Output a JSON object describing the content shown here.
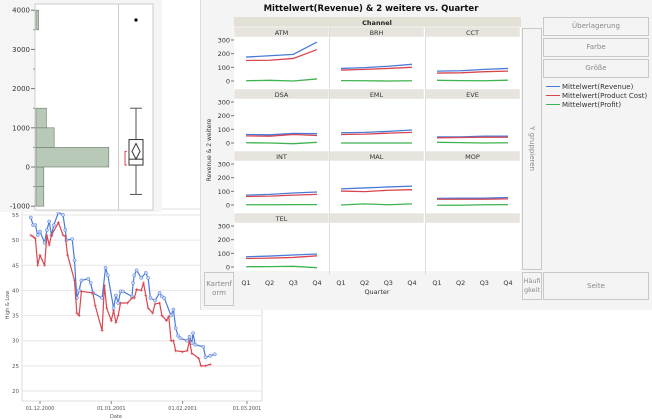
{
  "timeseries": {
    "chart_data": {
      "type": "line",
      "title": "",
      "xlabel": "Date",
      "ylabel": "High & Low",
      "ylim": [
        19,
        56
      ],
      "yticks": [
        20,
        25,
        30,
        35,
        40,
        45,
        50,
        55
      ],
      "xticks": [
        {
          "day": 0,
          "label": "01.12.2000"
        },
        {
          "day": 31,
          "label": "01.01.2001"
        },
        {
          "day": 62,
          "label": "01.02.2001"
        },
        {
          "day": 90,
          "label": "01.03.2001"
        }
      ],
      "x_unit": "days since 01.12.2000",
      "series": [
        {
          "name": "High",
          "color": "#4a7bd8",
          "points": [
            [
              -4,
              54.5
            ],
            [
              -3,
              53
            ],
            [
              -2,
              53
            ],
            [
              -1,
              51
            ],
            [
              0,
              51.7
            ],
            [
              2,
              49.5
            ],
            [
              3,
              52
            ],
            [
              4,
              53.7
            ],
            [
              5,
              51
            ],
            [
              6,
              53
            ],
            [
              8,
              55.5
            ],
            [
              10,
              55
            ],
            [
              11,
              52
            ],
            [
              11.5,
              50
            ],
            [
              14,
              50.2
            ],
            [
              15,
              46
            ],
            [
              16,
              38.5
            ],
            [
              17,
              40
            ],
            [
              18,
              42
            ],
            [
              21,
              42.3
            ],
            [
              22,
              41.5
            ],
            [
              23,
              39.5
            ],
            [
              27,
              38.5
            ],
            [
              28.5,
              44.5
            ],
            [
              29.5,
              43
            ],
            [
              32,
              36.5
            ],
            [
              33,
              39
            ],
            [
              34,
              37.5
            ],
            [
              35,
              39.8
            ],
            [
              36,
              39.8
            ],
            [
              40,
              38.8
            ],
            [
              40.5,
              41.5
            ],
            [
              41,
              43
            ],
            [
              42,
              44
            ],
            [
              44,
              42.5
            ],
            [
              46,
              43.5
            ],
            [
              47,
              42.5
            ],
            [
              48,
              38.5
            ],
            [
              50,
              38
            ],
            [
              52,
              39.5
            ],
            [
              53,
              38.8
            ],
            [
              54,
              38.5
            ],
            [
              57,
              35
            ],
            [
              58,
              36.2
            ],
            [
              59,
              32.5
            ],
            [
              60,
              31
            ],
            [
              61,
              30.5
            ],
            [
              64,
              30
            ],
            [
              65,
              30.8
            ],
            [
              66,
              29.5
            ],
            [
              66.5,
              31.5
            ],
            [
              67.5,
              29.2
            ],
            [
              71,
              28.8
            ],
            [
              72,
              26.7
            ],
            [
              74,
              27
            ],
            [
              76,
              27.3
            ]
          ]
        },
        {
          "name": "Low",
          "color": "#d8464f",
          "points": [
            [
              -4,
              51
            ],
            [
              -3,
              50.7
            ],
            [
              -2,
              50.3
            ],
            [
              -1,
              45
            ],
            [
              0,
              47
            ],
            [
              2,
              45
            ],
            [
              3,
              51
            ],
            [
              4,
              49
            ],
            [
              5,
              51
            ],
            [
              8,
              53.5
            ],
            [
              10,
              51
            ],
            [
              11,
              50.8
            ],
            [
              12,
              47
            ],
            [
              15,
              42
            ],
            [
              16,
              35.5
            ],
            [
              17,
              35
            ],
            [
              18,
              39.8
            ],
            [
              23,
              39.5
            ],
            [
              24,
              37
            ],
            [
              27,
              32
            ],
            [
              28,
              41
            ],
            [
              29,
              36.5
            ],
            [
              31,
              34
            ],
            [
              32,
              36
            ],
            [
              33,
              33.6
            ],
            [
              34,
              35
            ],
            [
              35,
              37.5
            ],
            [
              38,
              37.5
            ],
            [
              40,
              38.5
            ],
            [
              41,
              38.5
            ],
            [
              42,
              40.2
            ],
            [
              44,
              40
            ],
            [
              45,
              41.5
            ],
            [
              46,
              39
            ],
            [
              47,
              36.5
            ],
            [
              49,
              35.5
            ],
            [
              50,
              37.3
            ],
            [
              52,
              37.5
            ],
            [
              53,
              35
            ],
            [
              55,
              34
            ],
            [
              56,
              34.8
            ],
            [
              57,
              30
            ],
            [
              58,
              30
            ],
            [
              59,
              28
            ],
            [
              62,
              27.8
            ],
            [
              64,
              28
            ],
            [
              65,
              30
            ],
            [
              66,
              27.5
            ],
            [
              69,
              26.5
            ],
            [
              70,
              25
            ],
            [
              72,
              25
            ],
            [
              74,
              25.3
            ]
          ]
        }
      ]
    }
  },
  "histogram": {
    "chart_data": {
      "type": "bar",
      "orientation": "horizontal",
      "ylim": [
        -1000,
        4000
      ],
      "yticks": [
        "4000",
        "3000",
        "2000",
        "1000",
        "0",
        "-1000"
      ],
      "ytick_values": [
        4000,
        3000,
        2000,
        1000,
        0,
        -1000
      ],
      "bins": [
        {
          "from": -1000,
          "to": -500,
          "count": 3
        },
        {
          "from": -500,
          "to": 0,
          "count": 3
        },
        {
          "from": 0,
          "to": 500,
          "count": 28
        },
        {
          "from": 500,
          "to": 1000,
          "count": 7
        },
        {
          "from": 1000,
          "to": 1500,
          "count": 4
        },
        {
          "from": 3500,
          "to": 4000,
          "count": 1
        }
      ],
      "bar_color": "#b9c9b7",
      "boxplot": {
        "min": -700,
        "q1": 50,
        "median": 200,
        "q3": 700,
        "max": 1500,
        "outliers": [
          3750
        ],
        "mean": 400,
        "mean_ci": [
          200,
          600
        ],
        "shortest_half": [
          50,
          400
        ]
      }
    }
  },
  "graph_builder": {
    "title": "Mittelwert(Revenue) & 2 weitere vs. Quarter",
    "group_header": "Channel",
    "ylabel": "Revenue & 2 weitere",
    "xlabel": "Quarter",
    "buttons": {
      "overlay": "Überlagerung",
      "color": "Farbe",
      "size": "Größe",
      "group_y": "Y gruppieren",
      "map_shape": "Kartenform",
      "freq": "Häufigkeit",
      "page": "Seite"
    },
    "legend": [
      {
        "label": "Mittelwert(Revenue)",
        "color": "#4a7bd8"
      },
      {
        "label": "Mittelwert(Product Cost)",
        "color": "#d8464f"
      },
      {
        "label": "Mittelwert(Profit)",
        "color": "#3fb34f"
      }
    ],
    "chart_data": {
      "type": "line",
      "categories": [
        "Q1",
        "Q2",
        "Q3",
        "Q4"
      ],
      "ylim": [
        -10,
        300
      ],
      "yticks": [
        "0",
        "100",
        "200",
        "300"
      ],
      "panels": [
        {
          "channel": "ATM",
          "series": [
            [
              175,
              185,
              195,
              285
            ],
            [
              150,
              152,
              165,
              230
            ],
            [
              2,
              5,
              0,
              15
            ]
          ]
        },
        {
          "channel": "BRH",
          "series": [
            [
              92,
              98,
              108,
              122
            ],
            [
              80,
              85,
              92,
              100
            ],
            [
              3,
              2,
              0,
              2
            ]
          ]
        },
        {
          "channel": "CCT",
          "series": [
            [
              72,
              75,
              85,
              92
            ],
            [
              58,
              60,
              68,
              72
            ],
            [
              5,
              3,
              2,
              6
            ]
          ]
        },
        {
          "channel": "DSA",
          "series": [
            [
              62,
              60,
              70,
              68
            ],
            [
              52,
              50,
              62,
              55
            ],
            [
              2,
              0,
              -5,
              5
            ]
          ]
        },
        {
          "channel": "EML",
          "series": [
            [
              75,
              78,
              85,
              95
            ],
            [
              62,
              65,
              72,
              78
            ],
            [
              0,
              0,
              0,
              0
            ]
          ]
        },
        {
          "channel": "EVE",
          "series": [
            [
              45,
              45,
              50,
              50
            ],
            [
              38,
              40,
              42,
              42
            ],
            [
              5,
              3,
              0,
              2
            ]
          ]
        },
        {
          "channel": "INT",
          "series": [
            [
              72,
              78,
              88,
              95
            ],
            [
              62,
              65,
              72,
              78
            ],
            [
              2,
              2,
              3,
              3
            ]
          ]
        },
        {
          "channel": "MAL",
          "series": [
            [
              118,
              125,
              132,
              138
            ],
            [
              102,
              98,
              108,
              112
            ],
            [
              0,
              8,
              2,
              8
            ]
          ]
        },
        {
          "channel": "MOP",
          "series": [
            [
              48,
              50,
              50,
              55
            ],
            [
              42,
              42,
              42,
              45
            ],
            [
              -2,
              -2,
              2,
              3
            ]
          ]
        },
        {
          "channel": "TEL",
          "series": [
            [
              75,
              80,
              88,
              95
            ],
            [
              62,
              65,
              70,
              82
            ],
            [
              2,
              3,
              5,
              -5
            ]
          ]
        }
      ]
    }
  }
}
